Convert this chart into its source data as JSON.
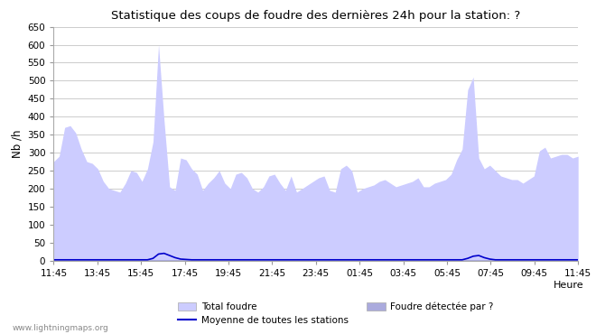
{
  "title": "Statistique des coups de foudre des dernières 24h pour la station: ?",
  "ylabel": "Nb /h",
  "xlabel": "Heure",
  "watermark": "www.lightningmaps.org",
  "x_labels": [
    "11:45",
    "13:45",
    "15:45",
    "17:45",
    "19:45",
    "21:45",
    "23:45",
    "01:45",
    "03:45",
    "05:45",
    "07:45",
    "09:45",
    "11:45"
  ],
  "ylim": [
    0,
    650
  ],
  "yticks": [
    0,
    50,
    100,
    150,
    200,
    250,
    300,
    350,
    400,
    450,
    500,
    550,
    600,
    650
  ],
  "bg_color": "#ffffff",
  "plot_bg_color": "#ffffff",
  "grid_color": "#cccccc",
  "fill_color_total": "#ccccff",
  "fill_color_detected": "#aaaadd",
  "line_color_mean": "#0000cc",
  "legend_total": "Total foudre",
  "legend_detected": "Foudre détectée par ?",
  "legend_mean": "Moyenne de toutes les stations",
  "total_foudre": [
    275,
    290,
    370,
    375,
    355,
    310,
    275,
    270,
    255,
    220,
    200,
    195,
    190,
    215,
    250,
    245,
    220,
    255,
    330,
    600,
    390,
    205,
    195,
    285,
    280,
    255,
    240,
    195,
    215,
    230,
    250,
    215,
    200,
    240,
    245,
    230,
    200,
    190,
    205,
    235,
    240,
    215,
    195,
    235,
    190,
    200,
    210,
    220,
    230,
    235,
    195,
    190,
    255,
    265,
    250,
    190,
    200,
    205,
    210,
    220,
    225,
    215,
    205,
    210,
    215,
    220,
    230,
    205,
    205,
    215,
    220,
    225,
    240,
    280,
    310,
    475,
    510,
    285,
    255,
    265,
    250,
    235,
    230,
    225,
    225,
    215,
    225,
    235,
    305,
    315,
    285,
    290,
    295,
    295,
    285,
    290
  ],
  "detected_foudre": [
    2,
    2,
    2,
    2,
    2,
    2,
    2,
    2,
    2,
    2,
    2,
    2,
    2,
    2,
    2,
    2,
    2,
    2,
    2,
    2,
    2,
    2,
    2,
    2,
    2,
    2,
    2,
    2,
    2,
    2,
    2,
    2,
    2,
    2,
    2,
    2,
    2,
    2,
    2,
    2,
    2,
    2,
    2,
    2,
    2,
    2,
    2,
    2,
    2,
    2,
    2,
    2,
    2,
    2,
    2,
    2,
    2,
    2,
    2,
    2,
    2,
    2,
    2,
    2,
    2,
    2,
    2,
    2,
    2,
    2,
    2,
    2,
    2,
    2,
    2,
    2,
    2,
    2,
    2,
    2,
    2,
    2,
    2,
    2,
    2,
    2,
    2,
    2,
    2,
    2,
    2,
    2,
    2,
    2,
    2,
    2
  ],
  "mean_line": [
    2,
    2,
    2,
    2,
    2,
    2,
    2,
    2,
    2,
    2,
    2,
    2,
    2,
    2,
    2,
    2,
    2,
    2,
    6,
    18,
    20,
    14,
    8,
    4,
    3,
    2,
    2,
    2,
    2,
    2,
    2,
    2,
    2,
    2,
    2,
    2,
    2,
    2,
    2,
    2,
    2,
    2,
    2,
    2,
    2,
    2,
    2,
    2,
    2,
    2,
    2,
    2,
    2,
    2,
    2,
    2,
    2,
    2,
    2,
    2,
    2,
    2,
    2,
    2,
    2,
    2,
    2,
    2,
    2,
    2,
    2,
    2,
    2,
    2,
    2,
    6,
    12,
    14,
    8,
    4,
    2,
    2,
    2,
    2,
    2,
    2,
    2,
    2,
    2,
    2,
    2,
    2,
    2,
    2,
    2,
    2
  ]
}
